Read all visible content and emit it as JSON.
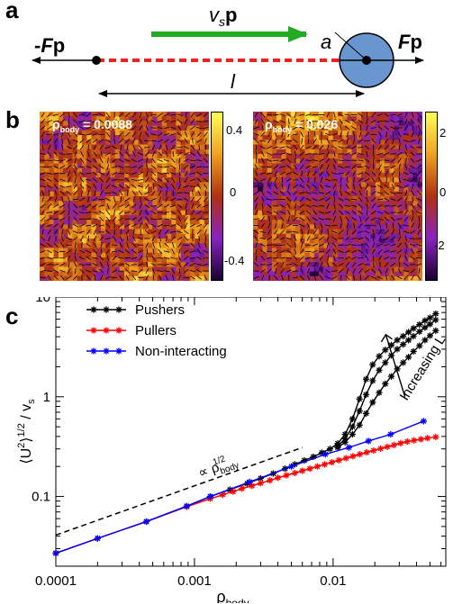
{
  "panels": {
    "a": {
      "label": "a",
      "left_force": "-F",
      "right_force": "F",
      "p_symbol": "p",
      "velocity_v": "v",
      "velocity_sub": "s",
      "radius_label": "a",
      "length_label": "l"
    },
    "b": {
      "label": "b",
      "left": {
        "rho_symbol": "ρ",
        "rho_sub": "body",
        "rho_value": "= 0.0088",
        "colorbar_ticks": [
          "0.4",
          "0",
          "-0.4"
        ]
      },
      "right": {
        "rho_symbol": "ρ",
        "rho_sub": "body",
        "rho_value": "= 0.026",
        "colorbar_ticks": [
          "2",
          "0",
          "-2"
        ]
      }
    },
    "c": {
      "label": "c"
    }
  },
  "chart_data": {
    "type": "line",
    "x_scale": "log",
    "y_scale": "log",
    "xlim": [
      0.0001,
      0.065
    ],
    "ylim": [
      0.02,
      10
    ],
    "xlabel": "ρ",
    "xlabel_sub": "body",
    "ylabel": "⟨U²⟩^1/2 / v_s",
    "ylabel_parts": {
      "pre": "⟨U",
      "sup1": "2",
      "mid": "⟩",
      "sup2": "1/2",
      "post": " / v",
      "sub": "s"
    },
    "x_ticks": [
      {
        "value": 0.0001,
        "label": "0.0001"
      },
      {
        "value": 0.001,
        "label": "0.001"
      },
      {
        "value": 0.01,
        "label": "0.01"
      }
    ],
    "y_ticks": [
      {
        "value": 0.1,
        "label": "0.1"
      },
      {
        "value": 1,
        "label": "1"
      },
      {
        "value": 10,
        "label": "10"
      }
    ],
    "legend": {
      "placement": "top-left",
      "entries": [
        {
          "label": "Pushers",
          "color": "#000000"
        },
        {
          "label": "Pullers",
          "color": "#ff0000"
        },
        {
          "label": "Non-interacting",
          "color": "#0000ff"
        }
      ]
    },
    "annotations": {
      "power_law_prefix": "∝ ρ",
      "power_law_sub": "body",
      "power_law_sup": "1/2",
      "increasing_L": "Increasing L"
    },
    "power_law_line": {
      "x": [
        0.0001,
        0.006
      ],
      "y": [
        0.041,
        0.31
      ],
      "style": "dashed",
      "color": "#000000"
    },
    "series": [
      {
        "name": "Pushers",
        "color": "#000000",
        "x": [
          0.0001,
          0.0002,
          0.00045,
          0.00088,
          0.0013,
          0.0018,
          0.0024,
          0.003,
          0.0037,
          0.0045,
          0.0053,
          0.0062,
          0.0072,
          0.0083,
          0.0095,
          0.0108,
          0.0122,
          0.0138,
          0.0155,
          0.0173,
          0.0193,
          0.0215,
          0.0238,
          0.0263,
          0.029,
          0.032,
          0.035,
          0.038,
          0.042,
          0.046,
          0.05,
          0.055
        ],
        "y": [
          0.027,
          0.038,
          0.056,
          0.08,
          0.1,
          0.117,
          0.135,
          0.152,
          0.17,
          0.19,
          0.21,
          0.23,
          0.25,
          0.275,
          0.3,
          0.34,
          0.42,
          0.6,
          0.95,
          1.5,
          2.1,
          2.55,
          2.95,
          3.3,
          3.7,
          4.05,
          4.45,
          4.85,
          5.3,
          5.8,
          6.2,
          6.8
        ]
      },
      {
        "name": "Pushers",
        "color": "#000000",
        "x": [
          0.0108,
          0.0122,
          0.0138,
          0.0155,
          0.0173,
          0.0193,
          0.0215,
          0.0238,
          0.0263,
          0.029,
          0.032,
          0.035,
          0.038,
          0.042,
          0.046,
          0.05,
          0.055
        ],
        "y": [
          0.32,
          0.38,
          0.5,
          0.72,
          1.05,
          1.45,
          1.85,
          2.2,
          2.6,
          3.0,
          3.35,
          3.7,
          4.05,
          4.5,
          4.95,
          5.35,
          5.9
        ]
      },
      {
        "name": "Pushers",
        "color": "#000000",
        "x": [
          0.0108,
          0.0122,
          0.0138,
          0.0155,
          0.0173,
          0.0193,
          0.0215,
          0.0238,
          0.0263,
          0.029,
          0.032,
          0.035,
          0.038,
          0.042,
          0.046,
          0.05,
          0.055
        ],
        "y": [
          0.31,
          0.35,
          0.42,
          0.52,
          0.68,
          0.88,
          1.1,
          1.35,
          1.6,
          1.9,
          2.2,
          2.5,
          2.85,
          3.25,
          3.7,
          4.1,
          4.6
        ]
      },
      {
        "name": "Pullers",
        "color": "#ff0000",
        "x": [
          0.0001,
          0.0002,
          0.00045,
          0.00088,
          0.0013,
          0.0016,
          0.0019,
          0.0022,
          0.0026,
          0.003,
          0.0035,
          0.004,
          0.0046,
          0.0053,
          0.006,
          0.0068,
          0.0077,
          0.0087,
          0.0098,
          0.011,
          0.0124,
          0.0139,
          0.0156,
          0.0175,
          0.0196,
          0.022,
          0.0246,
          0.0275,
          0.0307,
          0.0343,
          0.0383,
          0.043,
          0.048,
          0.055
        ],
        "y": [
          0.027,
          0.038,
          0.056,
          0.079,
          0.095,
          0.104,
          0.112,
          0.12,
          0.128,
          0.136,
          0.145,
          0.154,
          0.163,
          0.172,
          0.181,
          0.19,
          0.2,
          0.21,
          0.22,
          0.231,
          0.242,
          0.253,
          0.265,
          0.277,
          0.289,
          0.302,
          0.315,
          0.328,
          0.342,
          0.355,
          0.365,
          0.375,
          0.385,
          0.395
        ]
      },
      {
        "name": "Non-interacting",
        "color": "#0000ff",
        "x": [
          0.0001,
          0.0002,
          0.00045,
          0.00088,
          0.0013,
          0.0025,
          0.005,
          0.0088,
          0.013,
          0.018,
          0.026,
          0.045
        ],
        "y": [
          0.027,
          0.038,
          0.056,
          0.08,
          0.1,
          0.14,
          0.2,
          0.265,
          0.31,
          0.36,
          0.42,
          0.57
        ]
      }
    ]
  }
}
